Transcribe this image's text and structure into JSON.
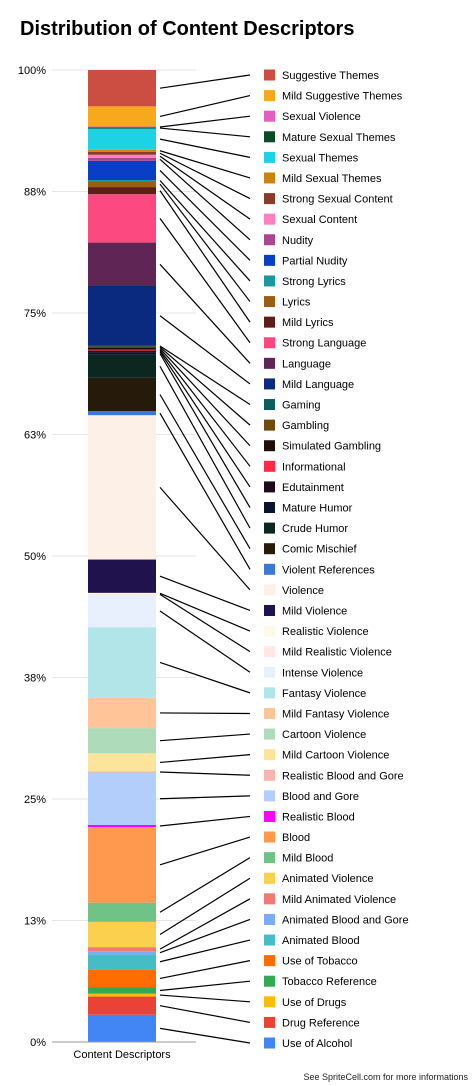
{
  "chart_data": {
    "type": "bar",
    "title": "Distribution of Content Descriptors",
    "categories": [
      "Content Descriptors"
    ],
    "yticks": [
      "0%",
      "13%",
      "25%",
      "38%",
      "50%",
      "63%",
      "75%",
      "88%",
      "100%"
    ],
    "ylim": [
      0,
      1
    ],
    "stacked": true,
    "normalized": true,
    "grid": true,
    "legend_placement": "right",
    "series": [
      {
        "name": "Use of Alcohol",
        "color": "#4285f4",
        "value": 0.027
      },
      {
        "name": "Drug Reference",
        "color": "#ea4335",
        "value": 0.018
      },
      {
        "name": "Use of Drugs",
        "color": "#fbbc04",
        "value": 0.003
      },
      {
        "name": "Tobacco Reference",
        "color": "#34a853",
        "value": 0.006
      },
      {
        "name": "Use of Tobacco",
        "color": "#ff6d01",
        "value": 0.018
      },
      {
        "name": "Animated Blood",
        "color": "#46bdc6",
        "value": 0.015
      },
      {
        "name": "Animated Blood and Gore",
        "color": "#7baaf7",
        "value": 0.003
      },
      {
        "name": "Mild Animated Violence",
        "color": "#f07b72",
        "value": 0.004
      },
      {
        "name": "Animated Violence",
        "color": "#fcd04f",
        "value": 0.025
      },
      {
        "name": "Mild Blood",
        "color": "#71c287",
        "value": 0.019
      },
      {
        "name": "Blood",
        "color": "#ff994d",
        "value": 0.075
      },
      {
        "name": "Realistic Blood",
        "color": "#f0f",
        "value": 0.002
      },
      {
        "name": "Blood and Gore",
        "color": "#b3cefb",
        "value": 0.052
      },
      {
        "name": "Realistic Blood and Gore",
        "color": "#f7b4ae",
        "value": 0.001
      },
      {
        "name": "Mild Cartoon Violence",
        "color": "#fde49b",
        "value": 0.018
      },
      {
        "name": "Cartoon Violence",
        "color": "#aedcba",
        "value": 0.025
      },
      {
        "name": "Mild Fantasy Violence",
        "color": "#ffc599",
        "value": 0.03
      },
      {
        "name": "Fantasy Violence",
        "color": "#b2e5e8",
        "value": 0.07
      },
      {
        "name": "Intense Violence",
        "color": "#e8f0fd",
        "value": 0.032
      },
      {
        "name": "Mild Realistic Violence",
        "color": "#fde8e6",
        "value": 0.001
      },
      {
        "name": "Realistic Violence",
        "color": "#fef8e6",
        "value": 0.001
      },
      {
        "name": "Mild Violence",
        "color": "#20124d",
        "value": 0.033
      },
      {
        "name": "Violence",
        "color": "#fdf0e6",
        "value": 0.143
      },
      {
        "name": "Violent References",
        "color": "#3c78d8",
        "value": 0.004
      },
      {
        "name": "Comic Mischief",
        "color": "#261a0a",
        "value": 0.033
      },
      {
        "name": "Crude Humor",
        "color": "#0c2620",
        "value": 0.023
      },
      {
        "name": "Mature Humor",
        "color": "#07142c",
        "value": 0.002
      },
      {
        "name": "Edutainment",
        "color": "#200b1a",
        "value": 0.002
      },
      {
        "name": "Informational",
        "color": "#ff2945",
        "value": 0.001
      },
      {
        "name": "Simulated Gambling",
        "color": "#1f0f0a",
        "value": 0.002
      },
      {
        "name": "Gambling",
        "color": "#6f4a0e",
        "value": 0.001
      },
      {
        "name": "Gaming",
        "color": "#0e5c5c",
        "value": 0.001
      },
      {
        "name": "Mild Language",
        "color": "#0a2a7f",
        "value": 0.059
      },
      {
        "name": "Language",
        "color": "#5e2555",
        "value": 0.043
      },
      {
        "name": "Strong Language",
        "color": "#fc4a80",
        "value": 0.048
      },
      {
        "name": "Mild Lyrics",
        "color": "#5e1e18",
        "value": 0.007
      },
      {
        "name": "Lyrics",
        "color": "#996012",
        "value": 0.006
      },
      {
        "name": "Strong Lyrics",
        "color": "#1a9aa0",
        "value": 0.001
      },
      {
        "name": "Partial Nudity",
        "color": "#0b3ec6",
        "value": 0.019
      },
      {
        "name": "Nudity",
        "color": "#a8478f",
        "value": 0.003
      },
      {
        "name": "Sexual Content",
        "color": "#ff80c0",
        "value": 0.003
      },
      {
        "name": "Strong Sexual Content",
        "color": "#8e3a2b",
        "value": 0.003
      },
      {
        "name": "Mild Sexual Themes",
        "color": "#c98412",
        "value": 0.002
      },
      {
        "name": "Sexual Themes",
        "color": "#1dd3e3",
        "value": 0.021
      },
      {
        "name": "Mature Sexual Themes",
        "color": "#0b4a23",
        "value": 0.001
      },
      {
        "name": "Sexual Violence",
        "color": "#e25fbf",
        "value": 0.001
      },
      {
        "name": "Mild Suggestive Themes",
        "color": "#f8a81c",
        "value": 0.02
      },
      {
        "name": "Suggestive Themes",
        "color": "#cc4e42",
        "value": 0.036
      }
    ]
  },
  "footer": "See SpriteCell.com for more informations"
}
